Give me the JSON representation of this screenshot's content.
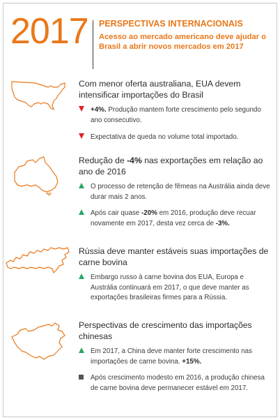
{
  "header": {
    "year": "2017",
    "title": "PERSPECTIVAS INTERNACIONAIS",
    "subtitle": "Acesso ao mercado americano deve ajudar o Brasil a abrir novos mercados em 2017"
  },
  "colors": {
    "accent": "#e9781a",
    "up": "#2aa564",
    "down": "#e0202a",
    "neutral": "#555555"
  },
  "sections": [
    {
      "map_icon": "usa-map-icon",
      "title": "Com menor oferta australiana, EUA devem intensificar importações do Brasil",
      "bullets": [
        {
          "marker": "down",
          "bold": "+4%.",
          "text": " Produção mantem forte crescimento pelo segundo ano consecutivo."
        },
        {
          "marker": "down",
          "bold": "",
          "text": "Expectativa de queda no volume total importado."
        }
      ]
    },
    {
      "map_icon": "australia-map-icon",
      "title_prefix": "Redução de ",
      "title_bold": "-4%",
      "title_suffix": " nas exportações em relação ao ano de 2016",
      "bullets": [
        {
          "marker": "up",
          "text": "O processo de retenção de fêmeas na Austrália ainda deve durar mais 2 anos."
        },
        {
          "marker": "up",
          "t1": "Após cair quase ",
          "b1": "-20%",
          "t2": " em 2016, produção deve recuar novamente em 2017, desta vez cerca de ",
          "b2": "-3%."
        }
      ]
    },
    {
      "map_icon": "russia-map-icon",
      "title": "Rússia deve manter estáveis suas importações de carne bovina",
      "bullets": [
        {
          "marker": "up",
          "text": "Embargo russo à carne bovina dos EUA, Europa e Austrália continuará em 2017, o que deve manter as exportações brasileiras firmes para a Rússia."
        }
      ]
    },
    {
      "map_icon": "china-map-icon",
      "title": "Perspectivas de crescimento das importações chinesas",
      "bullets": [
        {
          "marker": "up",
          "text": "Em 2017, a China deve manter forte crescimento nas importações de carne bovina. ",
          "bold": "+15%."
        },
        {
          "marker": "square",
          "text": "Após crescimento modesto em 2016, a produção chinesa de carne bovina deve permanecer estável em 2017."
        }
      ]
    }
  ]
}
